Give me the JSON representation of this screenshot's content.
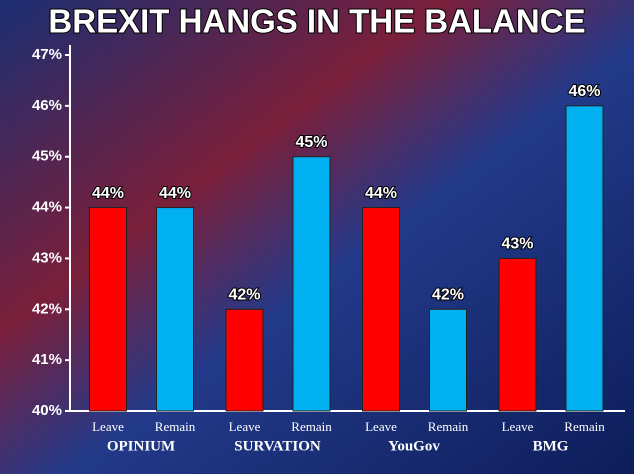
{
  "chart_data": {
    "type": "bar",
    "title": "BREXIT HANGS IN THE BALANCE",
    "categories": [
      "OPINIUM",
      "SURVATION",
      "YouGov",
      "BMG"
    ],
    "series": [
      {
        "name": "Leave",
        "color": "#ff0000",
        "values": [
          44,
          42,
          44,
          43
        ],
        "value_labels": [
          "44%",
          "42%",
          "44%",
          "43%"
        ]
      },
      {
        "name": "Remain",
        "color": "#00b0f0",
        "values": [
          44,
          45,
          42,
          46
        ],
        "value_labels": [
          "44%",
          "45%",
          "42%",
          "46%"
        ]
      }
    ],
    "ylim": [
      40,
      47
    ],
    "yticks": [
      {
        "value": 40,
        "label": "40%"
      },
      {
        "value": 41,
        "label": "41%"
      },
      {
        "value": 42,
        "label": "42%"
      },
      {
        "value": 43,
        "label": "43%"
      },
      {
        "value": 44,
        "label": "44%"
      },
      {
        "value": 45,
        "label": "45%"
      },
      {
        "value": 46,
        "label": "46%"
      },
      {
        "value": 47,
        "label": "47%"
      }
    ]
  }
}
